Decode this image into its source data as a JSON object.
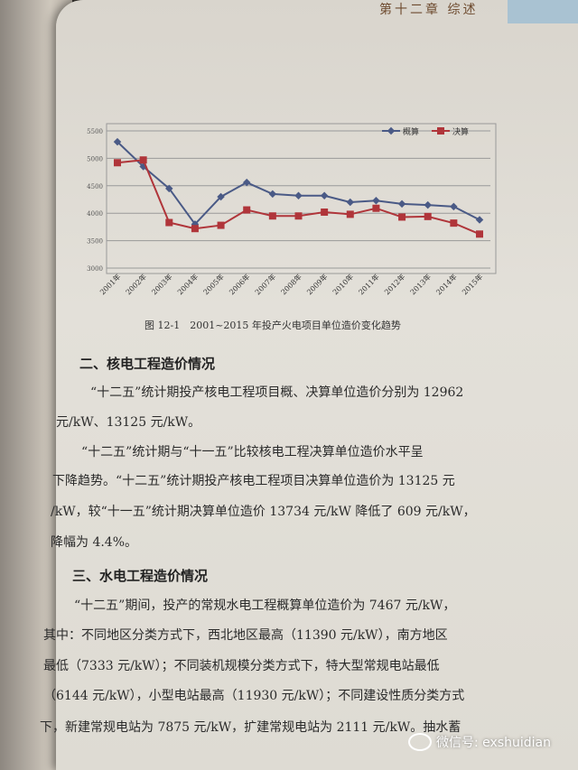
{
  "header": {
    "chapter": "第十二章  综述"
  },
  "chart_data": {
    "type": "line",
    "categories": [
      "2001年",
      "2002年",
      "2003年",
      "2004年",
      "2005年",
      "2006年",
      "2007年",
      "2008年",
      "2009年",
      "2010年",
      "2011年",
      "2012年",
      "2013年",
      "2014年",
      "2015年"
    ],
    "series": [
      {
        "name": "概算",
        "color": "#4a5a86",
        "values": [
          5300,
          4850,
          4450,
          3800,
          4300,
          4560,
          4350,
          4320,
          4320,
          4200,
          4230,
          4170,
          4150,
          4120,
          3880
        ]
      },
      {
        "name": "决算",
        "color": "#b0353a",
        "values": [
          4920,
          4970,
          3830,
          3720,
          3780,
          4060,
          3950,
          3950,
          4020,
          3980,
          4090,
          3930,
          3940,
          3820,
          3620
        ]
      }
    ],
    "yticks": [
      "3000",
      "3500",
      "4000",
      "4500",
      "5000",
      "5500"
    ],
    "ylim": [
      3000,
      5500
    ],
    "grid": true,
    "legend": "top-right",
    "title": "图 12-1　2001~2015 年投产火电项目单位造价变化趋势"
  },
  "sections": [
    {
      "heading": "二、核电工程造价情况",
      "lines": [
        "“十二五”统计期投产核电工程项目概、决算单位造价分别为 12962",
        "元/kW、13125 元/kW。",
        "“十二五”统计期与“十一五”比较核电工程决算单位造价水平呈",
        "下降趋势。“十二五”统计期投产核电工程项目决算单位造价为 13125 元",
        "/kW，较“十一五”统计期决算单位造价 13734 元/kW 降低了 609 元/kW，",
        "降幅为 4.4%。"
      ]
    },
    {
      "heading": "三、水电工程造价情况",
      "lines": [
        "“十二五”期间，投产的常规水电工程概算单位造价为 7467 元/kW，",
        "其中：不同地区分类方式下，西北地区最高（11390 元/kW），南方地区",
        "最低（7333 元/kW）；不同装机规模分类方式下，特大型常规电站最低",
        "（6144 元/kW），小型电站最高（11930 元/kW）；不同建设性质分类方式",
        "下，新建常规电站为 7875 元/kW，扩建常规电站为 2111 元/kW。抽水蓄"
      ]
    }
  ],
  "watermark": "微信号: exshuidian"
}
